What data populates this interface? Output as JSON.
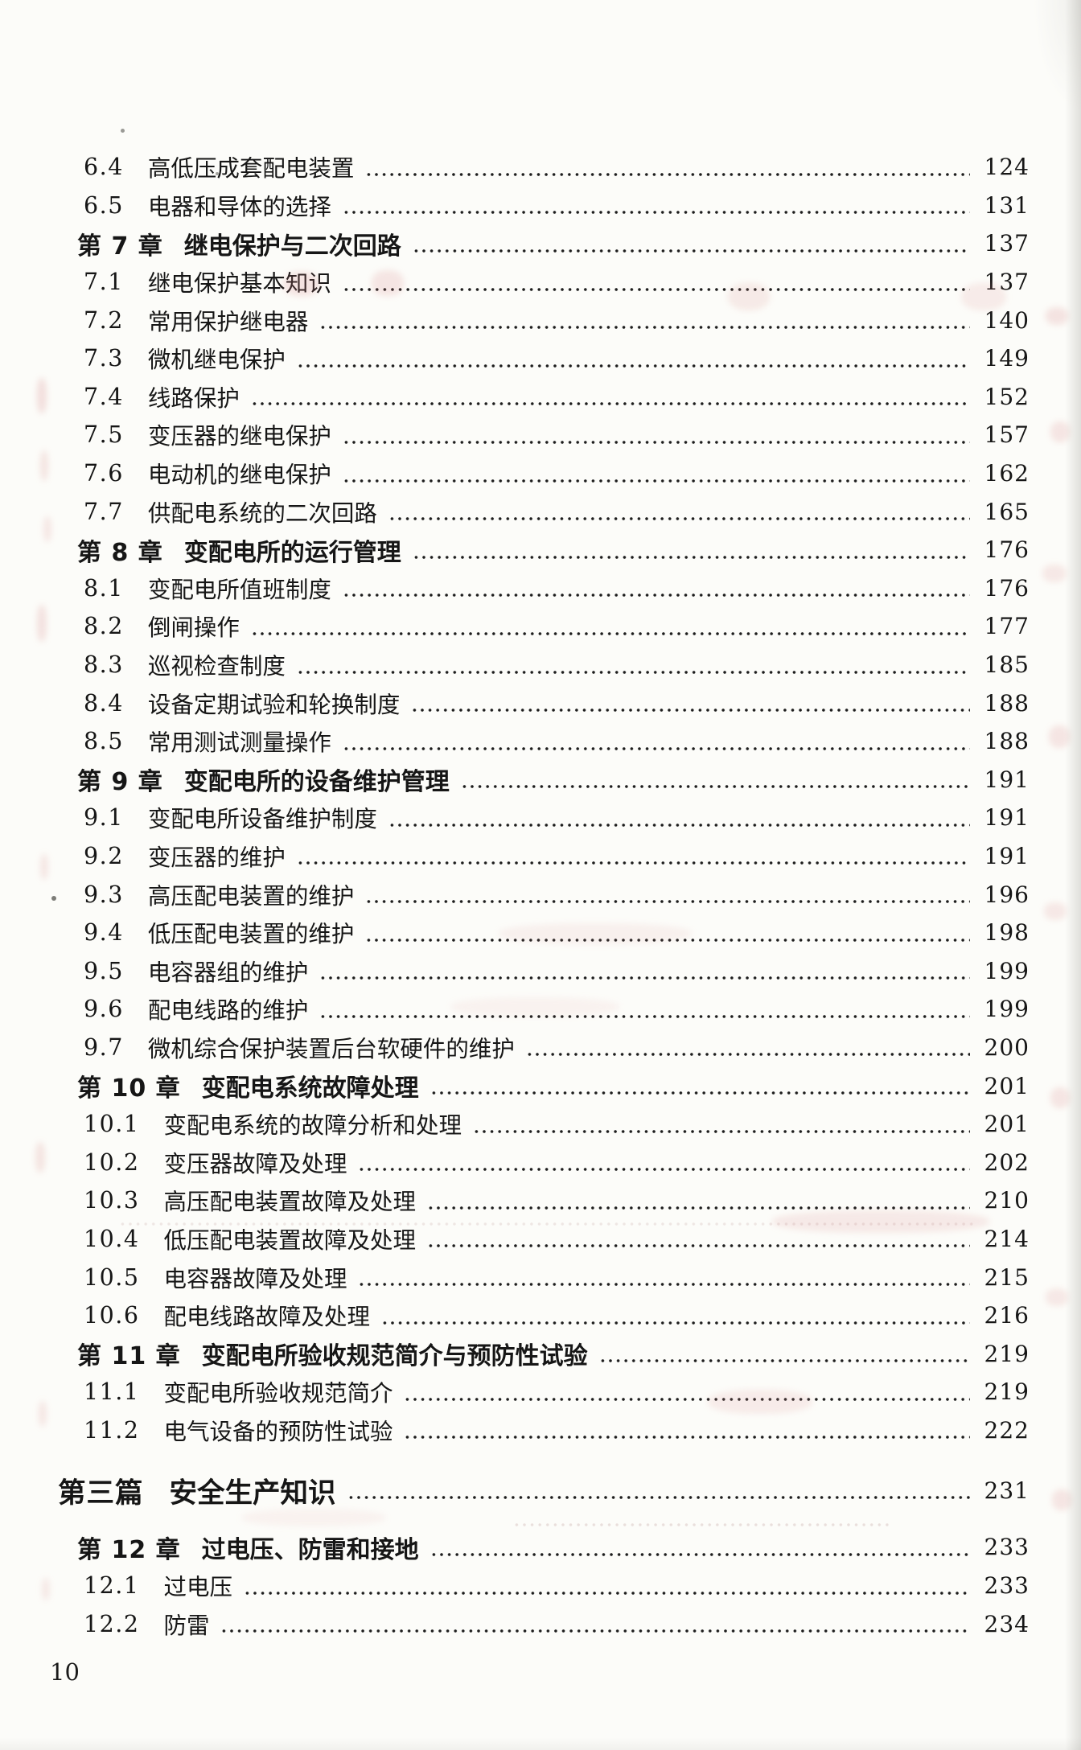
{
  "page": {
    "folio": "10"
  },
  "toc": {
    "entries": [
      {
        "level": "section",
        "num": "6.4",
        "title": "高低压成套配电装置",
        "page": "124"
      },
      {
        "level": "section",
        "num": "6.5",
        "title": "电器和导体的选择",
        "page": "131"
      },
      {
        "level": "chapter",
        "num": "第 7 章",
        "title": "继电保护与二次回路",
        "page": "137"
      },
      {
        "level": "section",
        "num": "7.1",
        "title": "继电保护基本知识",
        "page": "137"
      },
      {
        "level": "section",
        "num": "7.2",
        "title": "常用保护继电器",
        "page": "140"
      },
      {
        "level": "section",
        "num": "7.3",
        "title": "微机继电保护",
        "page": "149"
      },
      {
        "level": "section",
        "num": "7.4",
        "title": "线路保护",
        "page": "152"
      },
      {
        "level": "section",
        "num": "7.5",
        "title": "变压器的继电保护",
        "page": "157"
      },
      {
        "level": "section",
        "num": "7.6",
        "title": "电动机的继电保护",
        "page": "162"
      },
      {
        "level": "section",
        "num": "7.7",
        "title": "供配电系统的二次回路",
        "page": "165"
      },
      {
        "level": "chapter",
        "num": "第 8 章",
        "title": "变配电所的运行管理",
        "page": "176"
      },
      {
        "level": "section",
        "num": "8.1",
        "title": "变配电所值班制度",
        "page": "176"
      },
      {
        "level": "section",
        "num": "8.2",
        "title": "倒闸操作",
        "page": "177"
      },
      {
        "level": "section",
        "num": "8.3",
        "title": "巡视检查制度",
        "page": "185"
      },
      {
        "level": "section",
        "num": "8.4",
        "title": "设备定期试验和轮换制度",
        "page": "188"
      },
      {
        "level": "section",
        "num": "8.5",
        "title": "常用测试测量操作",
        "page": "188"
      },
      {
        "level": "chapter",
        "num": "第 9 章",
        "title": "变配电所的设备维护管理",
        "page": "191"
      },
      {
        "level": "section",
        "num": "9.1",
        "title": "变配电所设备维护制度",
        "page": "191"
      },
      {
        "level": "section",
        "num": "9.2",
        "title": "变压器的维护",
        "page": "191"
      },
      {
        "level": "section",
        "num": "9.3",
        "title": "高压配电装置的维护",
        "page": "196"
      },
      {
        "level": "section",
        "num": "9.4",
        "title": "低压配电装置的维护",
        "page": "198"
      },
      {
        "level": "section",
        "num": "9.5",
        "title": "电容器组的维护",
        "page": "199"
      },
      {
        "level": "section",
        "num": "9.6",
        "title": "配电线路的维护",
        "page": "199"
      },
      {
        "level": "section",
        "num": "9.7",
        "title": "微机综合保护装置后台软硬件的维护",
        "page": "200"
      },
      {
        "level": "chapter",
        "num": "第 10 章",
        "title": "变配电系统故障处理",
        "page": "201"
      },
      {
        "level": "section",
        "num": "10.1",
        "title": "变配电系统的故障分析和处理",
        "page": "201"
      },
      {
        "level": "section",
        "num": "10.2",
        "title": "变压器故障及处理",
        "page": "202"
      },
      {
        "level": "section",
        "num": "10.3",
        "title": "高压配电装置故障及处理",
        "page": "210"
      },
      {
        "level": "section",
        "num": "10.4",
        "title": "低压配电装置故障及处理",
        "page": "214"
      },
      {
        "level": "section",
        "num": "10.5",
        "title": "电容器故障及处理",
        "page": "215"
      },
      {
        "level": "section",
        "num": "10.6",
        "title": "配电线路故障及处理",
        "page": "216"
      },
      {
        "level": "chapter",
        "num": "第 11 章",
        "title": "变配电所验收规范简介与预防性试验",
        "page": "219"
      },
      {
        "level": "section",
        "num": "11.1",
        "title": "变配电所验收规范简介",
        "page": "219"
      },
      {
        "level": "section",
        "num": "11.2",
        "title": "电气设备的预防性试验",
        "page": "222"
      },
      {
        "level": "part",
        "num": "第三篇",
        "title": "安全生产知识",
        "page": "231"
      },
      {
        "level": "chapter",
        "num": "第 12 章",
        "title": "过电压、防雷和接地",
        "page": "233"
      },
      {
        "level": "section",
        "num": "12.1",
        "title": "过电压",
        "page": "233"
      },
      {
        "level": "section",
        "num": "12.2",
        "title": "防雷",
        "page": "234"
      }
    ]
  }
}
